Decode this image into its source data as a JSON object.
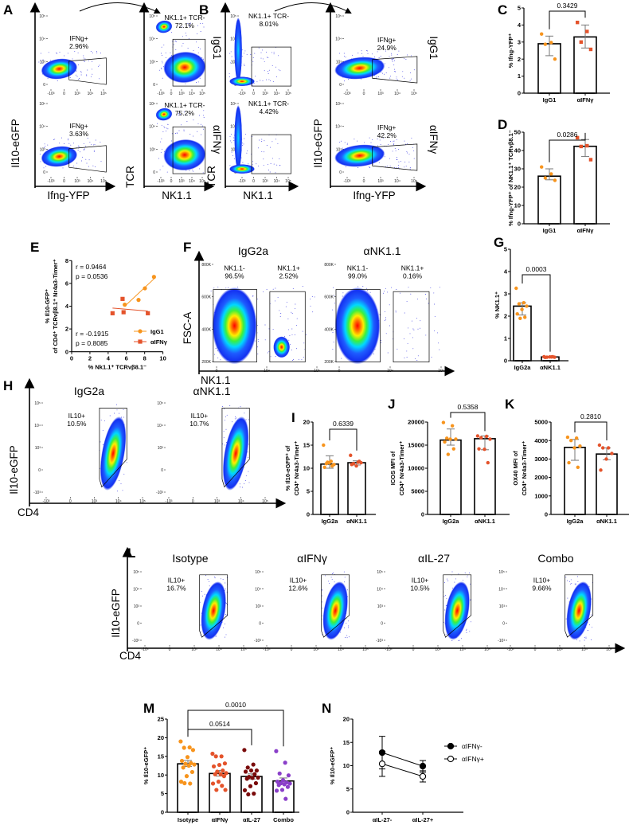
{
  "panel_labels": {
    "A": "A",
    "B": "B",
    "C": "C",
    "D": "D",
    "E": "E",
    "F": "F",
    "G": "G",
    "H": "H",
    "I": "I",
    "J": "J",
    "K": "K",
    "L": "L",
    "M": "M",
    "N": "N"
  },
  "colors": {
    "isotype": "#f7941d",
    "treated": "#e4532b",
    "dark_red": "#7a0b0b",
    "purple": "#8a3fc9",
    "axis": "#000000"
  },
  "flow": {
    "A": {
      "row_labels": [
        "IgG1",
        "αIFNγ"
      ],
      "left_y_axis": "Il10-eGFP",
      "left_x_axis": "Ifng-YFP",
      "right_y_axis": "TCR",
      "right_x_axis": "NK1.1",
      "ticks": {
        "y": [
          "10⁵",
          "10⁴",
          "10³",
          "0"
        ],
        "x": [
          "-10³",
          "0",
          "10³",
          "10⁴",
          "10⁵"
        ]
      },
      "plots": [
        {
          "gate": "IFNg+",
          "pct": "2.96%"
        },
        {
          "gate": "IFNg+",
          "pct": "3.63%"
        },
        {
          "gate": "NK1.1+ TCR-",
          "pct": "72.1%"
        },
        {
          "gate": "NK1.1+ TCR-",
          "pct": "75.2%"
        }
      ]
    },
    "B": {
      "row_labels": [
        "IgG1",
        "αIFNγ"
      ],
      "left_y_axis": "TCR",
      "left_x_axis": "NK1.1",
      "right_y_axis": "Il10-eGFP",
      "right_x_axis": "Ifng-YFP",
      "ticks": {
        "y": [
          "10⁵",
          "10⁴",
          "10³",
          "0"
        ],
        "x": [
          "-10³",
          "0",
          "10³",
          "10⁴",
          "10⁵"
        ]
      },
      "plots": [
        {
          "gate": "NK1.1+ TCR-",
          "pct": "8.01%"
        },
        {
          "gate": "NK1.1+ TCR-",
          "pct": "4.42%"
        },
        {
          "gate": "IFNg+",
          "pct": "24.9%"
        },
        {
          "gate": "IFNg+",
          "pct": "42.2%"
        }
      ]
    },
    "F": {
      "titles": [
        "IgG2a",
        "αNK1.1"
      ],
      "y_axis": "FSC-A",
      "x_axis": "NK1.1",
      "ticks": {
        "y": [
          "800K",
          "600K",
          "400K",
          "200K"
        ],
        "x": [
          "0",
          "10⁴",
          "10⁵"
        ]
      },
      "plots": [
        {
          "neg": "NK1.1-",
          "neg_pct": "96.5%",
          "pos": "NK1.1+",
          "pos_pct": "2.52%"
        },
        {
          "neg": "NK1.1-",
          "neg_pct": "99.0%",
          "pos": "NK1.1+",
          "pos_pct": "0.16%"
        }
      ]
    },
    "H": {
      "titles": [
        "IgG2a",
        "αNK1.1"
      ],
      "y_axis": "Il10-eGFP",
      "x_axis": "CD4",
      "ticks": {
        "y": [
          "10⁵",
          "10⁴",
          "10³",
          "0",
          "-10³"
        ],
        "x": [
          "-10³",
          "0",
          "10³",
          "10⁴",
          "10⁵"
        ]
      },
      "plots": [
        {
          "gate": "IL10+",
          "pct": "10.5%"
        },
        {
          "gate": "IL10+",
          "pct": "10.7%"
        }
      ]
    },
    "L": {
      "titles": [
        "Isotype",
        "αIFNγ",
        "αIL-27",
        "Combo"
      ],
      "y_axis": "Il10-eGFP",
      "x_axis": "CD4",
      "ticks": {
        "y": [
          "10⁵",
          "10⁴",
          "10³",
          "0",
          "-10³"
        ],
        "x": [
          "-10³",
          "0",
          "10³",
          "10⁴",
          "10⁵"
        ]
      },
      "plots": [
        {
          "gate": "IL10+",
          "pct": "16.7%"
        },
        {
          "gate": "IL10+",
          "pct": "12.6%"
        },
        {
          "gate": "IL10+",
          "pct": "10.5%"
        },
        {
          "gate": "IL10+",
          "pct": "9.66%"
        }
      ]
    }
  },
  "chart_data": [
    {
      "panel": "C",
      "type": "bar",
      "ylabel": "% Ifng-YFP⁺",
      "ylim": [
        0,
        5
      ],
      "yticks": [
        0,
        1,
        2,
        3,
        4,
        5
      ],
      "groups": [
        {
          "name": "IgG1",
          "mean": 2.9,
          "err": [
            2.2,
            3.35
          ],
          "points": [
            3.47,
            2.97,
            2.87,
            2.0
          ],
          "color": "#f7941d",
          "marker": "circle"
        },
        {
          "name": "αIFNγ",
          "mean": 3.3,
          "err": [
            2.65,
            4.0
          ],
          "points": [
            4.15,
            3.62,
            3.0,
            2.57
          ],
          "color": "#e4532b",
          "marker": "square"
        }
      ],
      "comparisons": [
        {
          "a": 0,
          "b": 1,
          "p": "0.3429"
        }
      ]
    },
    {
      "panel": "D",
      "type": "bar",
      "ylabel": "% Ifng-YFP⁺ of NK1.1⁺ TCRvβ8.1⁻",
      "ylim": [
        0,
        50
      ],
      "yticks": [
        0,
        10,
        20,
        30,
        40,
        50
      ],
      "groups": [
        {
          "name": "IgG1",
          "mean": 26,
          "err": [
            24,
            30
          ],
          "points": [
            31,
            27.2,
            25,
            23.7
          ],
          "color": "#f7941d",
          "marker": "circle"
        },
        {
          "name": "αIFNγ",
          "mean": 42.3,
          "err": [
            36.7,
            46
          ],
          "points": [
            47,
            42.6,
            42.2,
            35
          ],
          "color": "#e4532b",
          "marker": "square"
        }
      ],
      "comparisons": [
        {
          "a": 0,
          "b": 1,
          "p": "0.0286"
        }
      ]
    },
    {
      "panel": "E",
      "type": "scatter",
      "ylabel": [
        "% Il10-GFP⁺",
        "of CD4⁺ TCRvβ8.1⁺ Nr4a3-Timer⁺"
      ],
      "xlabel": "% Nk1.1⁺ TCRvβ8.1⁻",
      "xlim": [
        0,
        10
      ],
      "xticks": [
        0,
        2,
        4,
        6,
        8,
        10
      ],
      "ylim": [
        0,
        8
      ],
      "yticks": [
        0,
        2,
        4,
        6,
        8
      ],
      "series": [
        {
          "name": "IgG1",
          "color": "#f7941d",
          "marker": "circle",
          "x": [
            5.82,
            7.33,
            8.03,
            9.02
          ],
          "y": [
            4.13,
            4.55,
            5.57,
            6.57
          ],
          "fit": [
            [
              5.82,
              4.0
            ],
            [
              9.02,
              6.4
            ]
          ],
          "r": "r = 0.9464",
          "p": "p = 0.0536"
        },
        {
          "name": "αIFNγ",
          "color": "#e4532b",
          "marker": "square",
          "x": [
            4.48,
            5.58,
            5.69,
            8.35
          ],
          "y": [
            3.38,
            4.64,
            3.47,
            3.38
          ],
          "fit": [
            [
              4.48,
              3.83
            ],
            [
              8.35,
              3.57
            ]
          ],
          "r": "r = -0.1915",
          "p": "p = 0.8085"
        }
      ],
      "legend": "bottom-right"
    },
    {
      "panel": "G",
      "type": "bar",
      "ylabel": "% NK1.1⁺",
      "ylim": [
        0,
        5
      ],
      "yticks": [
        0,
        1,
        2,
        3,
        4,
        5
      ],
      "groups": [
        {
          "name": "IgG2a",
          "mean": 2.45,
          "err": [
            2.05,
            2.6
          ],
          "points": [
            3.25,
            2.6,
            2.55,
            2.45,
            2.3,
            2.1,
            1.95,
            1.9
          ],
          "color": "#f7941d",
          "marker": "circle"
        },
        {
          "name": "αNK1.1",
          "mean": 0.17,
          "err": [
            0.15,
            0.19
          ],
          "points": [
            0.18,
            0.17,
            0.16,
            0.16,
            0.17,
            0.15,
            0.18
          ],
          "color": "#e4532b",
          "marker": "circle"
        }
      ],
      "comparisons": [
        {
          "a": 0,
          "b": 1,
          "p": "0.0003"
        }
      ]
    },
    {
      "panel": "I",
      "type": "bar",
      "ylabel": [
        "% Il10-eGFP⁺ of",
        "CD4⁺ Nr4a3-Timer⁺"
      ],
      "ylim": [
        0,
        20
      ],
      "yticks": [
        0,
        5,
        10,
        15,
        20
      ],
      "groups": [
        {
          "name": "IgG2a",
          "mean": 10.9,
          "err": [
            10.0,
            12.7
          ],
          "points": [
            15,
            11.5,
            11,
            10.8,
            11.2,
            10.2,
            10.5,
            11.3
          ],
          "color": "#f7941d",
          "marker": "circle"
        },
        {
          "name": "αNK1.1",
          "mean": 11.2,
          "err": [
            10.7,
            11.6
          ],
          "points": [
            12.8,
            11.3,
            11,
            11.2,
            10.5,
            10.8,
            11.5
          ],
          "color": "#e4532b",
          "marker": "circle"
        }
      ],
      "comparisons": [
        {
          "a": 0,
          "b": 1,
          "p": "0.6339"
        }
      ]
    },
    {
      "panel": "J",
      "type": "bar",
      "ylabel": [
        "ICOS MFI of",
        "CD4⁺ Nr4a3-Timer⁺"
      ],
      "ylim": [
        0,
        20000
      ],
      "yticks": [
        0,
        5000,
        10000,
        15000,
        20000
      ],
      "groups": [
        {
          "name": "IgG2a",
          "mean": 16100,
          "err": [
            15000,
            18500
          ],
          "points": [
            19900,
            19200,
            16500,
            16300,
            16300,
            15700,
            14200,
            13000
          ],
          "color": "#f7941d",
          "marker": "circle"
        },
        {
          "name": "αNK1.1",
          "mean": 16400,
          "err": [
            14000,
            17000
          ],
          "points": [
            17000,
            16900,
            16600,
            16300,
            14100,
            14200,
            11200
          ],
          "color": "#e4532b",
          "marker": "circle"
        }
      ],
      "comparisons": [
        {
          "a": 0,
          "b": 1,
          "p": "0.5358"
        }
      ]
    },
    {
      "panel": "K",
      "type": "bar",
      "ylabel": [
        "OX40 MFI of",
        "CD4⁺ Nr4a3-Timer⁺"
      ],
      "ylim": [
        0,
        5000
      ],
      "yticks": [
        0,
        1000,
        2000,
        3000,
        4000,
        5000
      ],
      "groups": [
        {
          "name": "IgG2a",
          "mean": 3630,
          "err": [
            2930,
            4060
          ],
          "points": [
            4180,
            4130,
            4000,
            3700,
            3600,
            2800,
            2550
          ],
          "color": "#f7941d",
          "marker": "circle"
        },
        {
          "name": "αNK1.1",
          "mean": 3270,
          "err": [
            2960,
            3600
          ],
          "points": [
            3750,
            3600,
            3600,
            3300,
            3000,
            2400
          ],
          "color": "#e4532b",
          "marker": "circle"
        }
      ],
      "comparisons": [
        {
          "a": 0,
          "b": 1,
          "p": "0.2810"
        }
      ]
    },
    {
      "panel": "M",
      "type": "bar",
      "ylabel": "% Il10-eGFP⁺",
      "ylim": [
        0,
        25
      ],
      "yticks": [
        0,
        5,
        10,
        15,
        20,
        25
      ],
      "groups": [
        {
          "name": "Isotype",
          "mean": 13.0,
          "err": [
            12.3,
            13.9
          ],
          "points": [
            19,
            17.4,
            17.3,
            16.7,
            14.8,
            13.8,
            13.2,
            13,
            12.8,
            12.5,
            12,
            10.8,
            9.7,
            8.2,
            7.7,
            7.8
          ],
          "color": "#f7941d",
          "marker": "circle"
        },
        {
          "name": "αIFNγ",
          "mean": 10.4,
          "err": [
            9.7,
            11.2
          ],
          "points": [
            15.7,
            15,
            15,
            13.1,
            12.7,
            12.3,
            11.2,
            10.9,
            10.5,
            10.2,
            10.2,
            9.7,
            8.2,
            7.7,
            7.1,
            6,
            6
          ],
          "color": "#e4532b",
          "marker": "circle"
        },
        {
          "name": "αIL-27",
          "mean": 9.6,
          "err": [
            8.9,
            10.3
          ],
          "points": [
            16.7,
            12.8,
            12,
            11.2,
            11.2,
            10.9,
            10.2,
            9.5,
            9.3,
            9.2,
            9.0,
            7.8,
            7,
            5.9,
            5,
            4.8
          ],
          "color": "#7a0b0b",
          "marker": "circle"
        },
        {
          "name": "Combo",
          "mean": 8.4,
          "err": [
            7.7,
            9.2
          ],
          "points": [
            16.4,
            13.3,
            10.4,
            9.9,
            8.6,
            8.2,
            8,
            7.8,
            7.7,
            7.5,
            7.3,
            6.8,
            6,
            5.8,
            3.6
          ],
          "color": "#8a3fc9",
          "marker": "circle"
        }
      ],
      "comparisons": [
        {
          "a": 0,
          "b": 2,
          "p": "0.0514"
        },
        {
          "a": 0,
          "b": 3,
          "p": "0.0010"
        }
      ]
    },
    {
      "panel": "N",
      "type": "line",
      "ylabel": "% Il10-eGFP⁺",
      "ylim": [
        0,
        20
      ],
      "yticks": [
        0,
        5,
        10,
        15,
        20
      ],
      "categories": [
        "αIL-27-",
        "αIL-27+"
      ],
      "series": [
        {
          "name": "αIFNγ-",
          "fill": "filled",
          "values": [
            12.8,
            9.9
          ],
          "err": [
            [
              9.3,
              16.3
            ],
            [
              8.6,
              11.1
            ]
          ]
        },
        {
          "name": "αIFNγ+",
          "fill": "open",
          "values": [
            10.4,
            7.7
          ],
          "err": [
            [
              7.7,
              13.1
            ],
            [
              6.5,
              8.9
            ]
          ]
        }
      ],
      "legend": "right"
    }
  ]
}
